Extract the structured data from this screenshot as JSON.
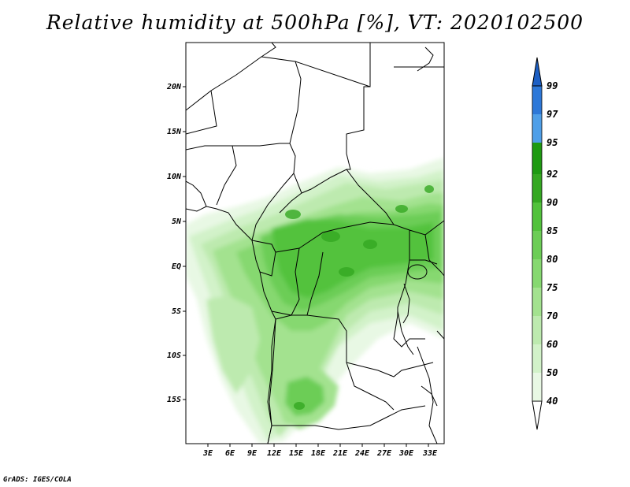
{
  "title": "Relative humidity at 500hPa [%], VT: 2020102500",
  "credit": "GrADS: IGES/COLA",
  "map": {
    "lon_ticks": [
      "3E",
      "6E",
      "9E",
      "12E",
      "15E",
      "18E",
      "21E",
      "24E",
      "27E",
      "30E",
      "33E"
    ],
    "lat_ticks": [
      "20N",
      "15N",
      "10N",
      "5N",
      "EQ",
      "5S",
      "10S",
      "15S"
    ]
  },
  "colorbar": {
    "levels": [
      "40",
      "50",
      "60",
      "70",
      "75",
      "80",
      "85",
      "90",
      "92",
      "95",
      "97",
      "99"
    ],
    "colors": {
      "lt40": "#ffffff",
      "40_50": "#e8f8e4",
      "50_60": "#d2f2c9",
      "60_70": "#bdeaaf",
      "70_75": "#a3e28f",
      "75_80": "#86d870",
      "80_85": "#6ccd56",
      "85_90": "#52c23c",
      "90_92": "#35a822",
      "92_95": "#1e9a12",
      "95_97": "#4f9fe8",
      "97_99": "#2d78d8",
      "gt99": "#1c5fc4"
    }
  }
}
